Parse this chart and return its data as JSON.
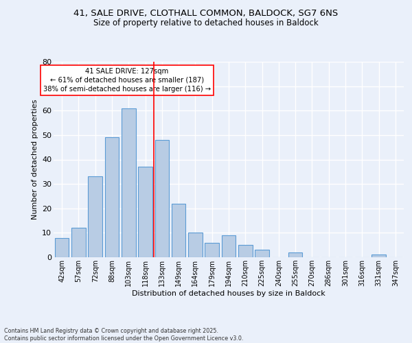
{
  "title_line1": "41, SALE DRIVE, CLOTHALL COMMON, BALDOCK, SG7 6NS",
  "title_line2": "Size of property relative to detached houses in Baldock",
  "xlabel": "Distribution of detached houses by size in Baldock",
  "ylabel": "Number of detached properties",
  "categories": [
    "42sqm",
    "57sqm",
    "72sqm",
    "88sqm",
    "103sqm",
    "118sqm",
    "133sqm",
    "149sqm",
    "164sqm",
    "179sqm",
    "194sqm",
    "210sqm",
    "225sqm",
    "240sqm",
    "255sqm",
    "270sqm",
    "286sqm",
    "301sqm",
    "316sqm",
    "331sqm",
    "347sqm"
  ],
  "values": [
    8,
    12,
    33,
    49,
    61,
    37,
    48,
    22,
    10,
    6,
    9,
    5,
    3,
    0,
    2,
    0,
    0,
    0,
    0,
    1,
    0
  ],
  "bar_color": "#b8cce4",
  "bar_edge_color": "#5b9bd5",
  "background_color": "#eaf0fa",
  "grid_color": "#ffffff",
  "vline_x": 5.5,
  "vline_color": "red",
  "annotation_text": "41 SALE DRIVE: 127sqm\n← 61% of detached houses are smaller (187)\n38% of semi-detached houses are larger (116) →",
  "annotation_box_color": "#ffffff",
  "annotation_box_edge": "red",
  "ylim": [
    0,
    80
  ],
  "yticks": [
    0,
    10,
    20,
    30,
    40,
    50,
    60,
    70,
    80
  ],
  "footnote": "Contains HM Land Registry data © Crown copyright and database right 2025.\nContains public sector information licensed under the Open Government Licence v3.0."
}
